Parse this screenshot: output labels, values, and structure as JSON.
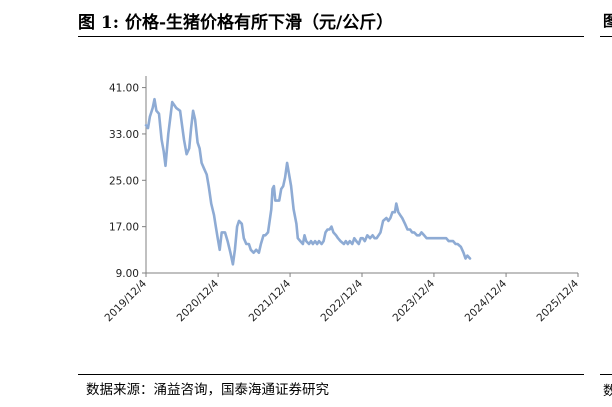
{
  "title": "图 1:  价格-生猪价格有所下滑（元/公斤）",
  "source": "数据来源：涌益咨询，国泰海通证券研究",
  "chart_data": {
    "type": "line",
    "title": "价格-生猪价格有所下滑（元/公斤）",
    "xlabel": "",
    "ylabel": "",
    "ylim": [
      9.0,
      43.0
    ],
    "y_ticks": [
      "9.00",
      "17.00",
      "25.00",
      "33.00",
      "41.00"
    ],
    "x_ticks": [
      "2019/12/4",
      "2020/12/4",
      "2021/12/4",
      "2022/12/4",
      "2023/12/4",
      "2024/12/4",
      "2025/12/4"
    ],
    "grid": false,
    "line_color": "#8eabd4",
    "series": [
      {
        "name": "",
        "points": [
          [
            "2019-12-04",
            34.5
          ],
          [
            "2019-12-14",
            34.0
          ],
          [
            "2019-12-24",
            36.0
          ],
          [
            "2020-01-07",
            37.5
          ],
          [
            "2020-01-16",
            39.0
          ],
          [
            "2020-01-26",
            37.0
          ],
          [
            "2020-02-08",
            36.5
          ],
          [
            "2020-02-21",
            32.0
          ],
          [
            "2020-03-03",
            30.0
          ],
          [
            "2020-03-12",
            27.5
          ],
          [
            "2020-03-26",
            33.0
          ],
          [
            "2020-04-08",
            36.5
          ],
          [
            "2020-04-15",
            38.5
          ],
          [
            "2020-05-05",
            37.5
          ],
          [
            "2020-05-25",
            37.0
          ],
          [
            "2020-06-14",
            32.0
          ],
          [
            "2020-06-27",
            29.5
          ],
          [
            "2020-07-10",
            30.5
          ],
          [
            "2020-07-20",
            34.0
          ],
          [
            "2020-07-30",
            37.0
          ],
          [
            "2020-08-09",
            35.5
          ],
          [
            "2020-08-22",
            31.5
          ],
          [
            "2020-09-01",
            30.5
          ],
          [
            "2020-09-11",
            28.0
          ],
          [
            "2020-09-24",
            27.0
          ],
          [
            "2020-10-07",
            26.0
          ],
          [
            "2020-10-17",
            24.0
          ],
          [
            "2020-10-30",
            21.0
          ],
          [
            "2020-11-13",
            19.0
          ],
          [
            "2020-11-22",
            17.0
          ],
          [
            "2020-12-02",
            15.0
          ],
          [
            "2020-12-12",
            13.0
          ],
          [
            "2020-12-22",
            16.0
          ],
          [
            "2021-01-08",
            16.0
          ],
          [
            "2021-01-21",
            14.5
          ],
          [
            "2021-02-04",
            12.5
          ],
          [
            "2021-02-17",
            10.5
          ],
          [
            "2021-02-27",
            13.0
          ],
          [
            "2021-03-10",
            17.0
          ],
          [
            "2021-03-20",
            18.0
          ],
          [
            "2021-04-03",
            17.5
          ],
          [
            "2021-04-13",
            15.0
          ],
          [
            "2021-04-26",
            14.0
          ],
          [
            "2021-05-09",
            14.0
          ],
          [
            "2021-05-19",
            13.0
          ],
          [
            "2021-06-02",
            12.5
          ],
          [
            "2021-06-15",
            13.0
          ],
          [
            "2021-06-29",
            12.5
          ],
          [
            "2021-07-09",
            14.0
          ],
          [
            "2021-07-22",
            15.5
          ],
          [
            "2021-08-01",
            15.5
          ],
          [
            "2021-08-14",
            16.0
          ],
          [
            "2021-08-31",
            20.0
          ],
          [
            "2021-09-06",
            23.5
          ],
          [
            "2021-09-13",
            24.0
          ],
          [
            "2021-09-20",
            21.5
          ],
          [
            "2021-09-30",
            21.5
          ],
          [
            "2021-10-10",
            21.5
          ],
          [
            "2021-10-20",
            23.5
          ],
          [
            "2021-10-30",
            24.0
          ],
          [
            "2021-11-09",
            25.5
          ],
          [
            "2021-11-19",
            28.0
          ],
          [
            "2021-11-29",
            26.0
          ],
          [
            "2021-12-09",
            24.0
          ],
          [
            "2021-12-22",
            20.0
          ],
          [
            "2022-01-05",
            17.5
          ],
          [
            "2022-01-12",
            15.0
          ],
          [
            "2022-01-25",
            14.5
          ],
          [
            "2022-02-07",
            14.0
          ],
          [
            "2022-02-15",
            15.5
          ],
          [
            "2022-02-24",
            14.5
          ],
          [
            "2022-03-10",
            14.0
          ],
          [
            "2022-03-20",
            14.5
          ],
          [
            "2022-03-30",
            14.0
          ],
          [
            "2022-04-10",
            14.5
          ],
          [
            "2022-04-20",
            14.0
          ],
          [
            "2022-04-30",
            14.5
          ],
          [
            "2022-05-13",
            14.0
          ],
          [
            "2022-05-23",
            14.5
          ],
          [
            "2022-06-02",
            16.0
          ],
          [
            "2022-06-12",
            16.5
          ],
          [
            "2022-06-22",
            16.5
          ],
          [
            "2022-07-02",
            17.0
          ],
          [
            "2022-07-12",
            16.0
          ],
          [
            "2022-07-25",
            15.5
          ],
          [
            "2022-08-04",
            15.0
          ],
          [
            "2022-08-17",
            14.5
          ],
          [
            "2022-09-03",
            14.0
          ],
          [
            "2022-09-13",
            14.5
          ],
          [
            "2022-09-23",
            14.0
          ],
          [
            "2022-10-03",
            14.5
          ],
          [
            "2022-10-16",
            14.0
          ],
          [
            "2022-10-26",
            15.0
          ],
          [
            "2022-11-05",
            14.5
          ],
          [
            "2022-11-18",
            14.0
          ],
          [
            "2022-11-28",
            15.0
          ],
          [
            "2022-12-08",
            15.0
          ],
          [
            "2022-12-18",
            14.5
          ],
          [
            "2022-12-31",
            15.5
          ],
          [
            "2023-01-14",
            15.0
          ],
          [
            "2023-01-27",
            15.5
          ],
          [
            "2023-02-06",
            15.0
          ],
          [
            "2023-02-16",
            15.0
          ],
          [
            "2023-02-26",
            15.5
          ],
          [
            "2023-03-08",
            16.0
          ],
          [
            "2023-03-21",
            18.0
          ],
          [
            "2023-04-07",
            18.5
          ],
          [
            "2023-04-17",
            18.0
          ],
          [
            "2023-04-27",
            18.5
          ],
          [
            "2023-05-07",
            19.5
          ],
          [
            "2023-05-20",
            19.5
          ],
          [
            "2023-05-27",
            21.0
          ],
          [
            "2023-06-06",
            19.5
          ],
          [
            "2023-06-16",
            19.0
          ],
          [
            "2023-06-26",
            18.5
          ],
          [
            "2023-07-10",
            17.5
          ],
          [
            "2023-07-23",
            16.5
          ],
          [
            "2023-08-05",
            16.5
          ],
          [
            "2023-08-15",
            16.0
          ],
          [
            "2023-08-26",
            16.0
          ],
          [
            "2023-09-09",
            15.5
          ],
          [
            "2023-09-22",
            15.5
          ],
          [
            "2023-10-02",
            16.0
          ],
          [
            "2023-10-15",
            15.5
          ],
          [
            "2023-10-28",
            15.0
          ],
          [
            "2023-11-07",
            15.0
          ],
          [
            "2023-11-18",
            15.0
          ],
          [
            "2023-12-01",
            15.0
          ],
          [
            "2023-12-13",
            15.0
          ],
          [
            "2023-12-22",
            15.0
          ],
          [
            "2024-01-04",
            15.0
          ],
          [
            "2024-01-14",
            15.0
          ],
          [
            "2024-01-24",
            15.0
          ],
          [
            "2024-02-04",
            15.0
          ],
          [
            "2024-02-17",
            14.5
          ],
          [
            "2024-02-27",
            14.5
          ],
          [
            "2024-03-10",
            14.5
          ],
          [
            "2024-03-23",
            14.0
          ],
          [
            "2024-04-02",
            14.0
          ],
          [
            "2024-04-19",
            13.5
          ],
          [
            "2024-05-02",
            12.5
          ],
          [
            "2024-05-12",
            11.5
          ],
          [
            "2024-05-22",
            12.0
          ],
          [
            "2024-06-04",
            11.5
          ]
        ]
      }
    ]
  }
}
